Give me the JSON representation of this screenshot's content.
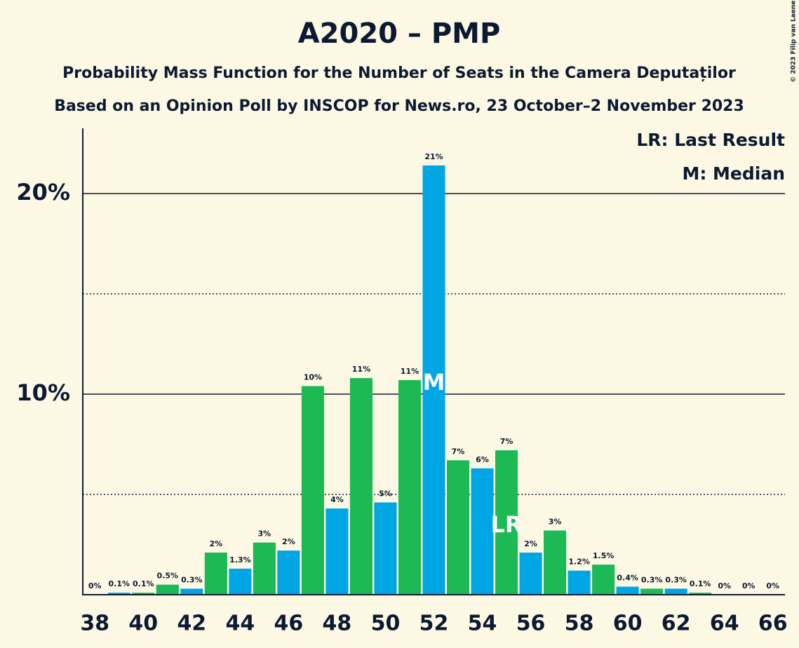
{
  "chart_data": {
    "type": "bar",
    "title": "A2020 – PMP",
    "subtitle": "Probability Mass Function for the Number of Seats in the Camera Deputaților",
    "subtitle2": "Based on an Opinion Poll by INSCOP for News.ro, 23 October–2 November 2023",
    "copyright": "© 2023 Filip van Laenen",
    "x": [
      38,
      39,
      40,
      41,
      42,
      43,
      44,
      45,
      46,
      47,
      48,
      49,
      50,
      51,
      52,
      53,
      54,
      55,
      56,
      57,
      58,
      59,
      60,
      61,
      62,
      63,
      64,
      65,
      66
    ],
    "values": [
      0,
      0.1,
      0.1,
      0.5,
      0.3,
      2.1,
      1.3,
      2.6,
      2.2,
      10.4,
      4.3,
      10.8,
      4.6,
      10.7,
      21.4,
      6.7,
      6.3,
      7.2,
      2.1,
      3.2,
      1.2,
      1.5,
      0.4,
      0.3,
      0.3,
      0.1,
      0,
      0,
      0
    ],
    "value_labels": [
      "0%",
      "0.1%",
      "0.1%",
      "0.5%",
      "0.3%",
      "2%",
      "1.3%",
      "3%",
      "2%",
      "10%",
      "4%",
      "11%",
      "5%",
      "11%",
      "21%",
      "7%",
      "6%",
      "7%",
      "2%",
      "3%",
      "1.2%",
      "1.5%",
      "0.4%",
      "0.3%",
      "0.3%",
      "0.1%",
      "0%",
      "0%",
      "0%"
    ],
    "colors": [
      "#1db954",
      "#00a6e4",
      "#1db954",
      "#1db954",
      "#00a6e4",
      "#1db954",
      "#00a6e4",
      "#1db954",
      "#00a6e4",
      "#1db954",
      "#00a6e4",
      "#1db954",
      "#00a6e4",
      "#1db954",
      "#00a6e4",
      "#1db954",
      "#00a6e4",
      "#1db954",
      "#00a6e4",
      "#1db954",
      "#00a6e4",
      "#1db954",
      "#00a6e4",
      "#1db954",
      "#00a6e4",
      "#1db954",
      "#00a6e4",
      "#1db954",
      "#00a6e4"
    ],
    "xlim": [
      37.5,
      66.5
    ],
    "xticks": [
      38,
      40,
      42,
      44,
      46,
      48,
      50,
      52,
      54,
      56,
      58,
      60,
      62,
      64,
      66
    ],
    "ylim": [
      0,
      23.25
    ],
    "yticks": [
      {
        "value": 10,
        "label": "10%"
      },
      {
        "value": 20,
        "label": "20%"
      }
    ],
    "minor_grid": [
      5,
      15
    ],
    "annotations": [
      {
        "x": 52,
        "label": "M"
      },
      {
        "x": 55,
        "label": "LR"
      }
    ],
    "legend": [
      "LR: Last Result",
      "M: Median"
    ]
  }
}
